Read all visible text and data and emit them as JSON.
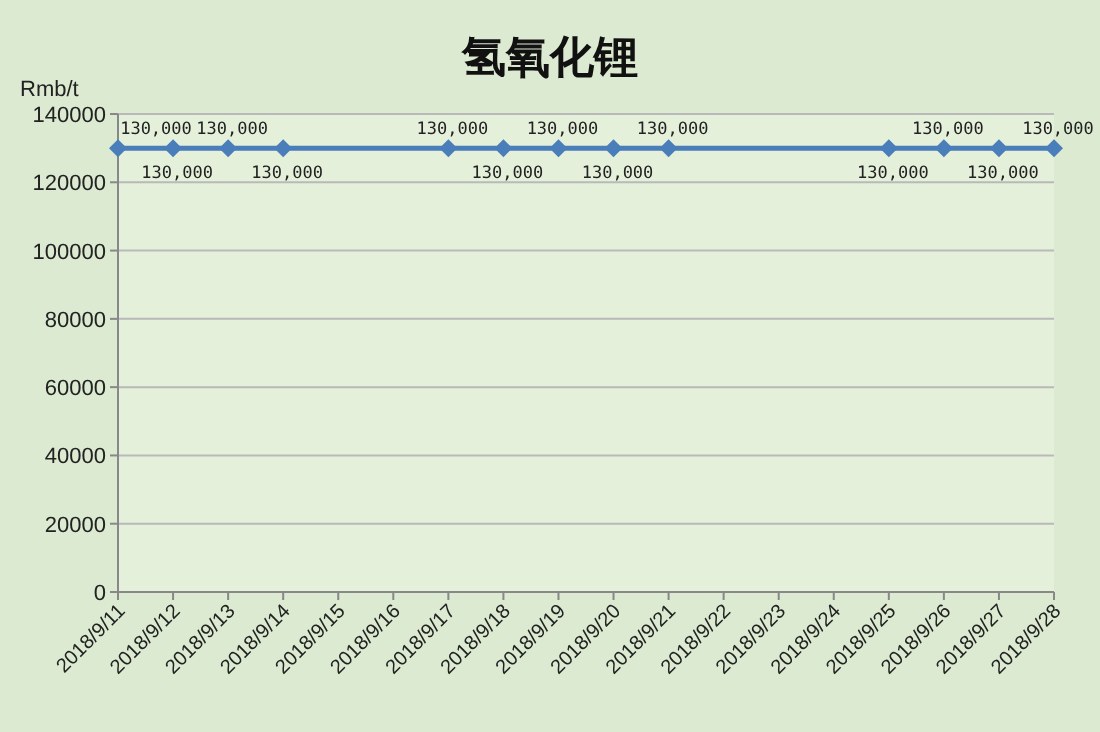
{
  "chart_data": {
    "type": "line",
    "title": "氢氧化锂",
    "ylabel": "Rmb/t",
    "x": [
      "2018-09-11",
      "2018-09-12",
      "2018-09-13",
      "2018-09-14",
      "2018-09-17",
      "2018-09-18",
      "2018-09-19",
      "2018-09-20",
      "2018-09-21",
      "2018-09-25",
      "2018-09-26",
      "2018-09-27",
      "2018-09-28"
    ],
    "series": [
      {
        "color": "#4a7ebb",
        "values": [
          130000,
          130000,
          130000,
          130000,
          130000,
          130000,
          130000,
          130000,
          130000,
          130000,
          130000,
          130000,
          130000
        ],
        "value_labels": [
          "130,000",
          "130,000",
          "130,000",
          "130,000",
          "130,000",
          "130,000",
          "130,000",
          "130,000",
          "130,000",
          "130,000",
          "130,000",
          "130,000",
          "130,000"
        ]
      }
    ],
    "xlim": [
      "2018-09-11",
      "2018-09-28"
    ],
    "xticks": [
      {
        "value": "2018-09-11",
        "label": "2018/9/11"
      },
      {
        "value": "2018-09-12",
        "label": "2018/9/12"
      },
      {
        "value": "2018-09-13",
        "label": "2018/9/13"
      },
      {
        "value": "2018-09-14",
        "label": "2018/9/14"
      },
      {
        "value": "2018-09-15",
        "label": "2018/9/15"
      },
      {
        "value": "2018-09-16",
        "label": "2018/9/16"
      },
      {
        "value": "2018-09-17",
        "label": "2018/9/17"
      },
      {
        "value": "2018-09-18",
        "label": "2018/9/18"
      },
      {
        "value": "2018-09-19",
        "label": "2018/9/19"
      },
      {
        "value": "2018-09-20",
        "label": "2018/9/20"
      },
      {
        "value": "2018-09-21",
        "label": "2018/9/21"
      },
      {
        "value": "2018-09-22",
        "label": "2018/9/22"
      },
      {
        "value": "2018-09-23",
        "label": "2018/9/23"
      },
      {
        "value": "2018-09-24",
        "label": "2018/9/24"
      },
      {
        "value": "2018-09-25",
        "label": "2018/9/25"
      },
      {
        "value": "2018-09-26",
        "label": "2018/9/26"
      },
      {
        "value": "2018-09-27",
        "label": "2018/9/27"
      },
      {
        "value": "2018-09-28",
        "label": "2018/9/28"
      }
    ],
    "ylim": [
      0,
      140000
    ],
    "yticks": [
      0,
      20000,
      40000,
      60000,
      80000,
      100000,
      120000,
      140000
    ],
    "grid": "y",
    "marker": "diamond",
    "line_style": "solid"
  }
}
